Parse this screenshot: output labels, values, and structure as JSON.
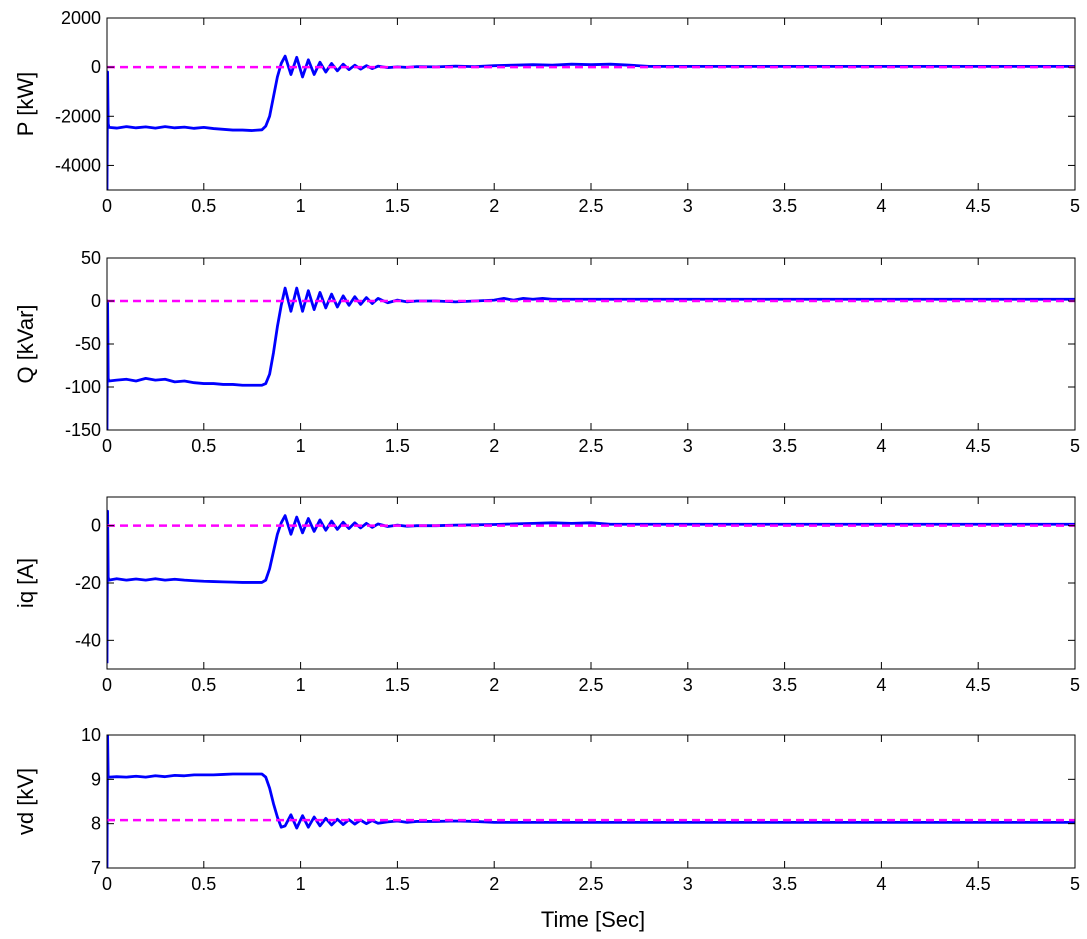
{
  "figure": {
    "xlabel": "Time [Sec]",
    "colors": {
      "response": "#0000ff",
      "reference": "#ff00ff",
      "axes": "#000000",
      "background": "#ffffff"
    }
  },
  "chart_data": [
    {
      "type": "line",
      "ylabel": "P [kW]",
      "xlim": [
        0,
        5
      ],
      "ylim": [
        -5000,
        2000
      ],
      "xticks": [
        "0",
        "0.5",
        "1",
        "1.5",
        "2",
        "2.5",
        "3",
        "3.5",
        "4",
        "4.5",
        "5"
      ],
      "yticks": [
        "2000",
        "0",
        "-2000",
        "-4000"
      ],
      "ytick_values": [
        2000,
        0,
        -2000,
        -4000
      ],
      "grid": false,
      "series": [
        {
          "role": "response",
          "x": [
            0.0,
            0.003,
            0.006,
            0.01,
            0.05,
            0.1,
            0.15,
            0.2,
            0.25,
            0.3,
            0.35,
            0.4,
            0.45,
            0.5,
            0.55,
            0.6,
            0.65,
            0.7,
            0.75,
            0.8,
            0.82,
            0.84,
            0.86,
            0.88,
            0.9,
            0.92,
            0.95,
            0.98,
            1.01,
            1.04,
            1.07,
            1.1,
            1.13,
            1.16,
            1.19,
            1.22,
            1.25,
            1.28,
            1.31,
            1.34,
            1.37,
            1.4,
            1.45,
            1.5,
            1.55,
            1.6,
            1.7,
            1.8,
            1.9,
            2.0,
            2.1,
            2.2,
            2.3,
            2.4,
            2.5,
            2.6,
            2.7,
            2.8,
            3.0,
            3.5,
            4.0,
            4.5,
            5.0
          ],
          "y": [
            -5000,
            -200,
            -2300,
            -2450,
            -2480,
            -2420,
            -2470,
            -2430,
            -2480,
            -2420,
            -2470,
            -2440,
            -2490,
            -2450,
            -2500,
            -2530,
            -2560,
            -2560,
            -2580,
            -2550,
            -2400,
            -2000,
            -1200,
            -400,
            150,
            450,
            -300,
            400,
            -400,
            300,
            -300,
            200,
            -200,
            150,
            -150,
            120,
            -100,
            80,
            -80,
            60,
            -60,
            40,
            -20,
            10,
            -10,
            20,
            10,
            40,
            20,
            60,
            80,
            100,
            80,
            120,
            100,
            120,
            80,
            30,
            30,
            30,
            30,
            30,
            30
          ]
        },
        {
          "role": "reference",
          "x": [
            0,
            5
          ],
          "y": [
            0,
            0
          ]
        }
      ]
    },
    {
      "type": "line",
      "ylabel": "Q [kVar]",
      "xlim": [
        0,
        5
      ],
      "ylim": [
        -150,
        50
      ],
      "xticks": [
        "0",
        "0.5",
        "1",
        "1.5",
        "2",
        "2.5",
        "3",
        "3.5",
        "4",
        "4.5",
        "5"
      ],
      "yticks": [
        "50",
        "0",
        "-50",
        "-100",
        "-150"
      ],
      "ytick_values": [
        50,
        0,
        -50,
        -100,
        -150
      ],
      "grid": false,
      "series": [
        {
          "role": "response",
          "x": [
            0.0,
            0.003,
            0.006,
            0.01,
            0.05,
            0.1,
            0.15,
            0.2,
            0.25,
            0.3,
            0.35,
            0.4,
            0.45,
            0.5,
            0.55,
            0.6,
            0.65,
            0.7,
            0.75,
            0.8,
            0.82,
            0.84,
            0.86,
            0.88,
            0.9,
            0.92,
            0.95,
            0.98,
            1.01,
            1.04,
            1.07,
            1.1,
            1.13,
            1.16,
            1.19,
            1.22,
            1.25,
            1.28,
            1.31,
            1.34,
            1.37,
            1.4,
            1.45,
            1.5,
            1.55,
            1.6,
            1.7,
            1.8,
            1.9,
            2.0,
            2.05,
            2.1,
            2.15,
            2.2,
            2.25,
            2.3,
            2.5,
            3.0,
            3.5,
            4.0,
            4.5,
            5.0
          ],
          "y": [
            -150,
            0,
            -90,
            -93,
            -92,
            -91,
            -93,
            -90,
            -92,
            -91,
            -94,
            -93,
            -95,
            -96,
            -96,
            -97,
            -97,
            -98,
            -98,
            -98,
            -96,
            -85,
            -60,
            -30,
            -5,
            15,
            -12,
            15,
            -12,
            12,
            -10,
            10,
            -8,
            8,
            -7,
            6,
            -5,
            5,
            -4,
            4,
            -3,
            3,
            -2,
            1,
            -1,
            0,
            0,
            -1,
            0,
            1,
            3,
            1,
            3,
            2,
            3,
            2,
            2,
            2,
            2,
            2,
            2,
            2
          ]
        },
        {
          "role": "reference",
          "x": [
            0,
            5
          ],
          "y": [
            0,
            0
          ]
        }
      ]
    },
    {
      "type": "line",
      "ylabel": "iq [A]",
      "xlim": [
        0,
        5
      ],
      "ylim": [
        -50,
        10
      ],
      "xticks": [
        "0",
        "0.5",
        "1",
        "1.5",
        "2",
        "2.5",
        "3",
        "3.5",
        "4",
        "4.5",
        "5"
      ],
      "yticks": [
        "0",
        "-20",
        "-40"
      ],
      "ytick_values": [
        0,
        -20,
        -40
      ],
      "grid": false,
      "series": [
        {
          "role": "response",
          "x": [
            0.0,
            0.003,
            0.006,
            0.01,
            0.05,
            0.1,
            0.15,
            0.2,
            0.25,
            0.3,
            0.35,
            0.4,
            0.45,
            0.5,
            0.55,
            0.6,
            0.65,
            0.7,
            0.75,
            0.8,
            0.82,
            0.84,
            0.86,
            0.88,
            0.9,
            0.92,
            0.95,
            0.98,
            1.01,
            1.04,
            1.07,
            1.1,
            1.13,
            1.16,
            1.19,
            1.22,
            1.25,
            1.28,
            1.31,
            1.34,
            1.37,
            1.4,
            1.45,
            1.5,
            1.55,
            1.6,
            1.7,
            1.8,
            1.9,
            2.0,
            2.1,
            2.2,
            2.3,
            2.4,
            2.5,
            2.6,
            3.0,
            3.5,
            4.0,
            4.5,
            5.0
          ],
          "y": [
            -48,
            5,
            -18,
            -19,
            -18.5,
            -19,
            -18.6,
            -19,
            -18.5,
            -19,
            -18.7,
            -19,
            -19.2,
            -19.4,
            -19.5,
            -19.6,
            -19.7,
            -19.8,
            -19.8,
            -19.8,
            -19,
            -15,
            -9,
            -3,
            1,
            3.5,
            -3,
            3,
            -2.5,
            2.5,
            -2,
            2,
            -1.6,
            1.6,
            -1.3,
            1.2,
            -1,
            1,
            -0.8,
            0.8,
            -0.6,
            0.6,
            -0.3,
            0.2,
            -0.2,
            0,
            0,
            0.2,
            0.3,
            0.4,
            0.6,
            0.8,
            1,
            0.8,
            1,
            0.5,
            0.5,
            0.5,
            0.5,
            0.5,
            0.5
          ]
        },
        {
          "role": "reference",
          "x": [
            0,
            5
          ],
          "y": [
            0,
            0
          ]
        }
      ]
    },
    {
      "type": "line",
      "ylabel": "vd [kV]",
      "xlim": [
        0,
        5
      ],
      "ylim": [
        7,
        10
      ],
      "xticks": [
        "0",
        "0.5",
        "1",
        "1.5",
        "2",
        "2.5",
        "3",
        "3.5",
        "4",
        "4.5",
        "5"
      ],
      "yticks": [
        "10",
        "9",
        "8",
        "7"
      ],
      "ytick_values": [
        10,
        9,
        8,
        7
      ],
      "grid": false,
      "series": [
        {
          "role": "response",
          "x": [
            0.0,
            0.003,
            0.006,
            0.01,
            0.05,
            0.1,
            0.15,
            0.2,
            0.25,
            0.3,
            0.35,
            0.4,
            0.45,
            0.5,
            0.55,
            0.6,
            0.65,
            0.7,
            0.75,
            0.8,
            0.82,
            0.84,
            0.86,
            0.88,
            0.9,
            0.92,
            0.95,
            0.98,
            1.01,
            1.04,
            1.07,
            1.1,
            1.13,
            1.16,
            1.19,
            1.22,
            1.25,
            1.28,
            1.31,
            1.34,
            1.37,
            1.4,
            1.45,
            1.5,
            1.55,
            1.6,
            1.7,
            1.8,
            1.9,
            2.0,
            2.5,
            3.0,
            3.5,
            4.0,
            4.5,
            5.0
          ],
          "y": [
            7,
            10,
            9.05,
            9.05,
            9.06,
            9.05,
            9.07,
            9.05,
            9.08,
            9.06,
            9.09,
            9.08,
            9.1,
            9.1,
            9.1,
            9.11,
            9.12,
            9.12,
            9.12,
            9.12,
            9.05,
            8.8,
            8.45,
            8.15,
            7.92,
            7.95,
            8.2,
            7.9,
            8.18,
            7.92,
            8.15,
            7.95,
            8.12,
            7.97,
            8.1,
            7.98,
            8.09,
            7.99,
            8.08,
            8.0,
            8.07,
            8.01,
            8.04,
            8.06,
            8.03,
            8.05,
            8.05,
            8.06,
            8.05,
            8.03,
            8.03,
            8.03,
            8.03,
            8.03,
            8.03,
            8.03
          ]
        },
        {
          "role": "reference",
          "x": [
            0,
            5
          ],
          "y": [
            8.08,
            8.08
          ]
        }
      ]
    }
  ]
}
